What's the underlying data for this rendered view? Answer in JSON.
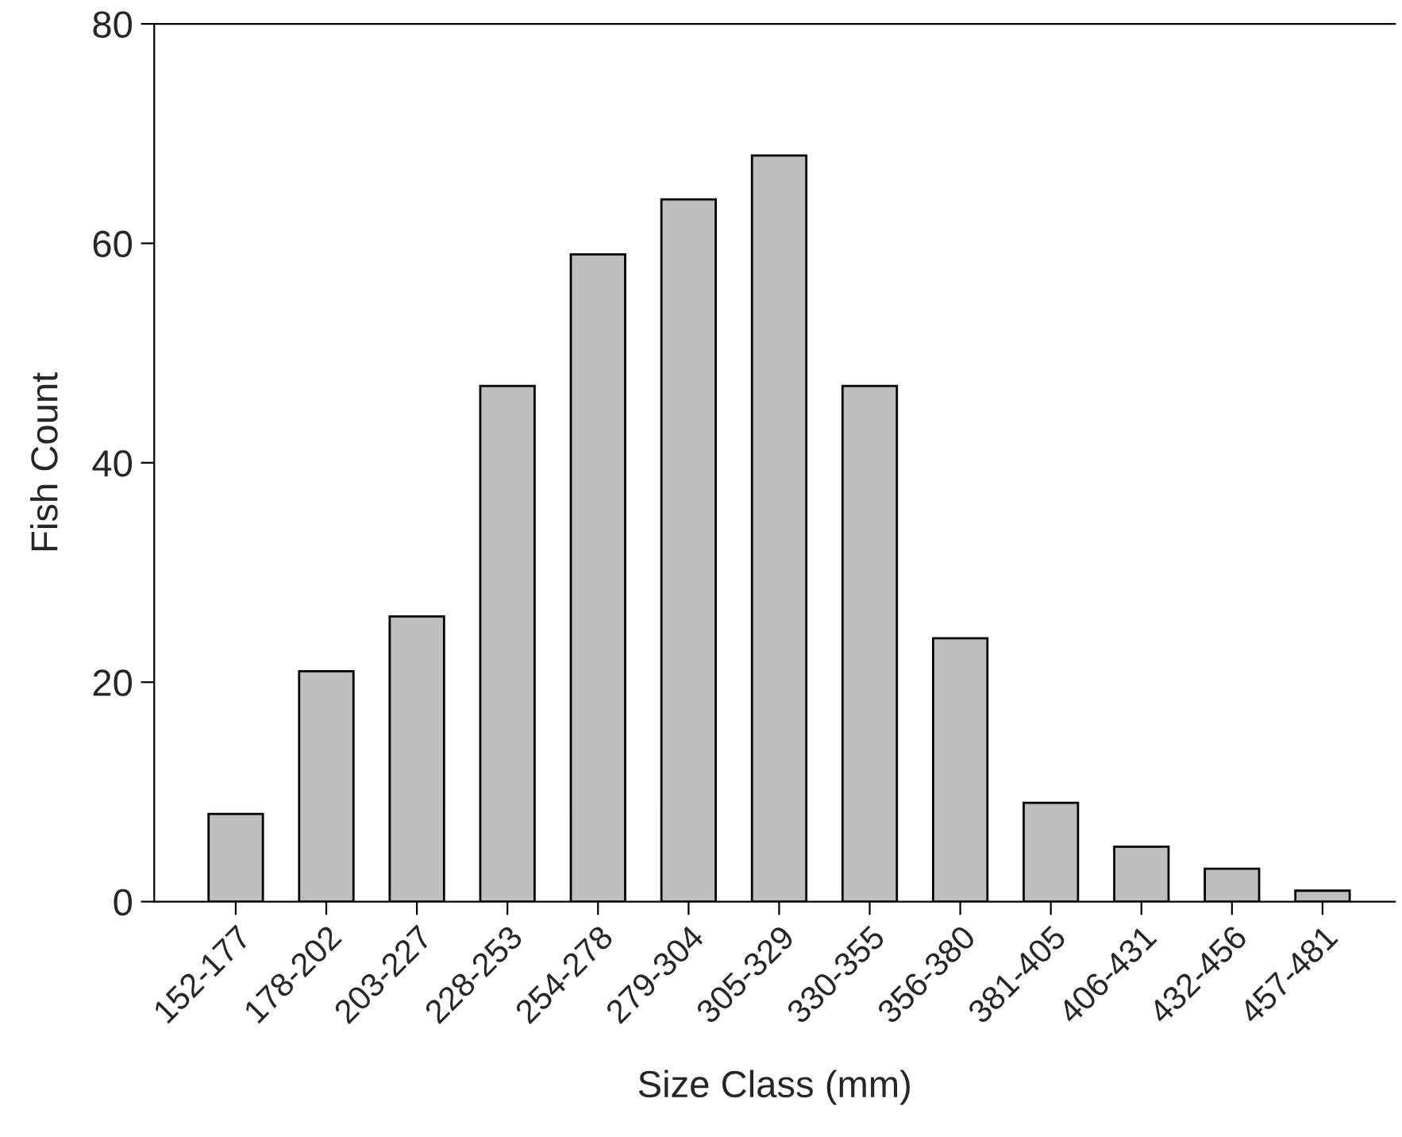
{
  "chart_data": {
    "type": "bar",
    "xlabel": "Size Class (mm)",
    "ylabel": "Fish Count",
    "categories": [
      "152-177",
      "178-202",
      "203-227",
      "228-253",
      "254-278",
      "279-304",
      "305-329",
      "330-355",
      "356-380",
      "381-405",
      "406-431",
      "432-456",
      "457-481"
    ],
    "values": [
      8,
      21,
      26,
      47,
      59,
      64,
      68,
      47,
      24,
      9,
      5,
      3,
      1
    ],
    "color": "#bebebe",
    "ylim": [
      0,
      80
    ],
    "yticks": [
      0,
      20,
      40,
      60,
      80
    ],
    "grid": false
  }
}
